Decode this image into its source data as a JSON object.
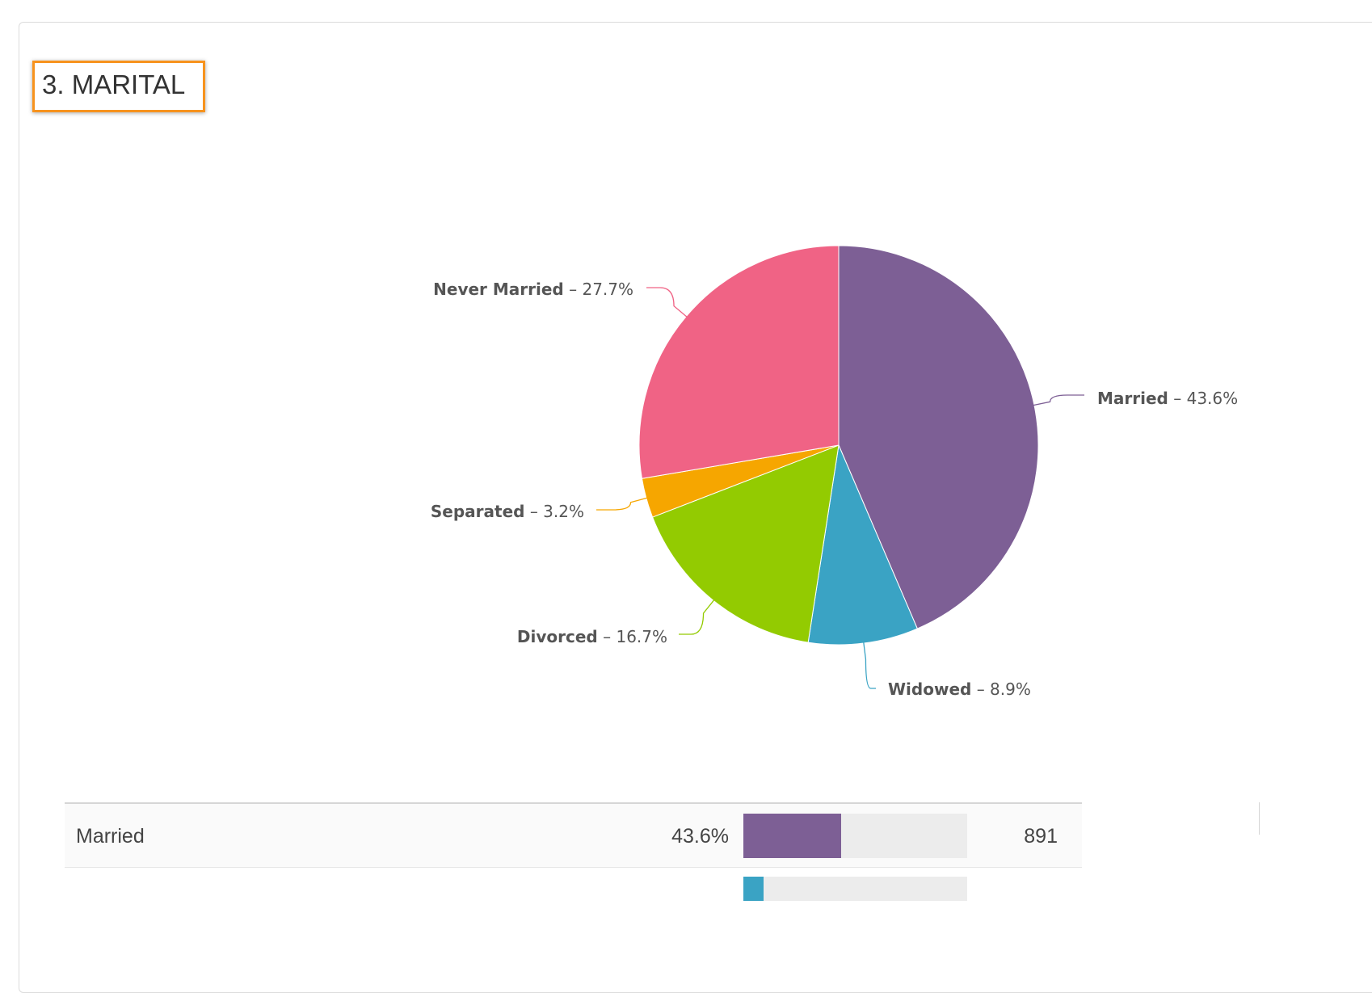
{
  "question": {
    "title": "3. MARITAL"
  },
  "chart_data": {
    "type": "pie",
    "slices": [
      {
        "label": "Married",
        "value": 43.6,
        "color": "#7d5f95"
      },
      {
        "label": "Widowed",
        "value": 8.9,
        "color": "#3aa3c4"
      },
      {
        "label": "Divorced",
        "value": 16.7,
        "color": "#93cb01"
      },
      {
        "label": "Separated",
        "value": 3.2,
        "color": "#f6a600"
      },
      {
        "label": "Never Married",
        "value": 27.7,
        "color": "#f06385"
      }
    ],
    "label_format": "{label} – {value}%"
  },
  "table": {
    "rows": [
      {
        "label": "Married",
        "percent": "43.6%",
        "fraction": 0.436,
        "count": "891",
        "color": "#7d5f95"
      },
      {
        "label": "",
        "percent": "",
        "fraction": 0.089,
        "count": "",
        "color": "#3aa3c4"
      }
    ]
  }
}
